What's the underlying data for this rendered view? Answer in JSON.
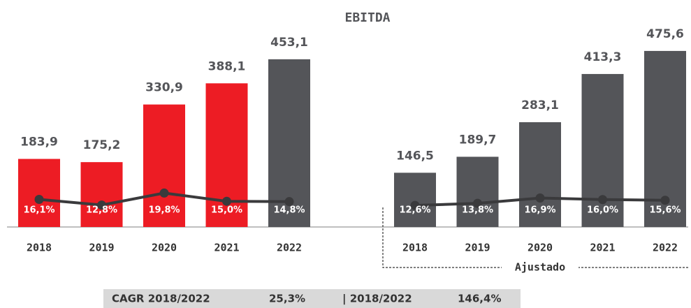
{
  "title": "EBITDA",
  "chart_data": [
    {
      "type": "bar",
      "categories": [
        "2018",
        "2019",
        "2020",
        "2021",
        "2022"
      ],
      "ylim": [
        0,
        500
      ],
      "y2lim": [
        0,
        108
      ],
      "series": [
        {
          "values": [
            183.9,
            175.2,
            330.9,
            388.1,
            453.1
          ],
          "value_labels": [
            "183,9",
            "175,2",
            "330,9",
            "388,1",
            "453,1"
          ],
          "colors": [
            "#ed1c24",
            "#ed1c24",
            "#ed1c24",
            "#ed1c24",
            "#545559"
          ]
        },
        {
          "type": "line",
          "axis": "y2",
          "color": "#3a3a3c",
          "values": [
            16.1,
            12.8,
            19.8,
            15.0,
            14.8
          ],
          "value_labels": [
            "16,1%",
            "12,8%",
            "19,8%",
            "15,0%",
            "14,8%"
          ]
        }
      ]
    },
    {
      "type": "bar",
      "categories": [
        "2018",
        "2019",
        "2020",
        "2021",
        "2022"
      ],
      "ylim": [
        0,
        500
      ],
      "y2lim": [
        0,
        108
      ],
      "annotation": "Ajustado",
      "series": [
        {
          "values": [
            146.5,
            189.7,
            283.1,
            413.3,
            475.6
          ],
          "value_labels": [
            "146,5",
            "189,7",
            "283,1",
            "413,3",
            "475,6"
          ],
          "colors": [
            "#545559",
            "#545559",
            "#545559",
            "#545559",
            "#545559"
          ]
        },
        {
          "type": "line",
          "axis": "y2",
          "color": "#3a3a3c",
          "values": [
            12.6,
            13.8,
            16.9,
            16.0,
            15.6
          ],
          "value_labels": [
            "12,6%",
            "13,8%",
            "16,9%",
            "16,0%",
            "15,6%"
          ]
        }
      ]
    }
  ],
  "footer": [
    "CAGR 2018/2022",
    "25,3%",
    "| 2018/2022",
    "146,4%"
  ]
}
